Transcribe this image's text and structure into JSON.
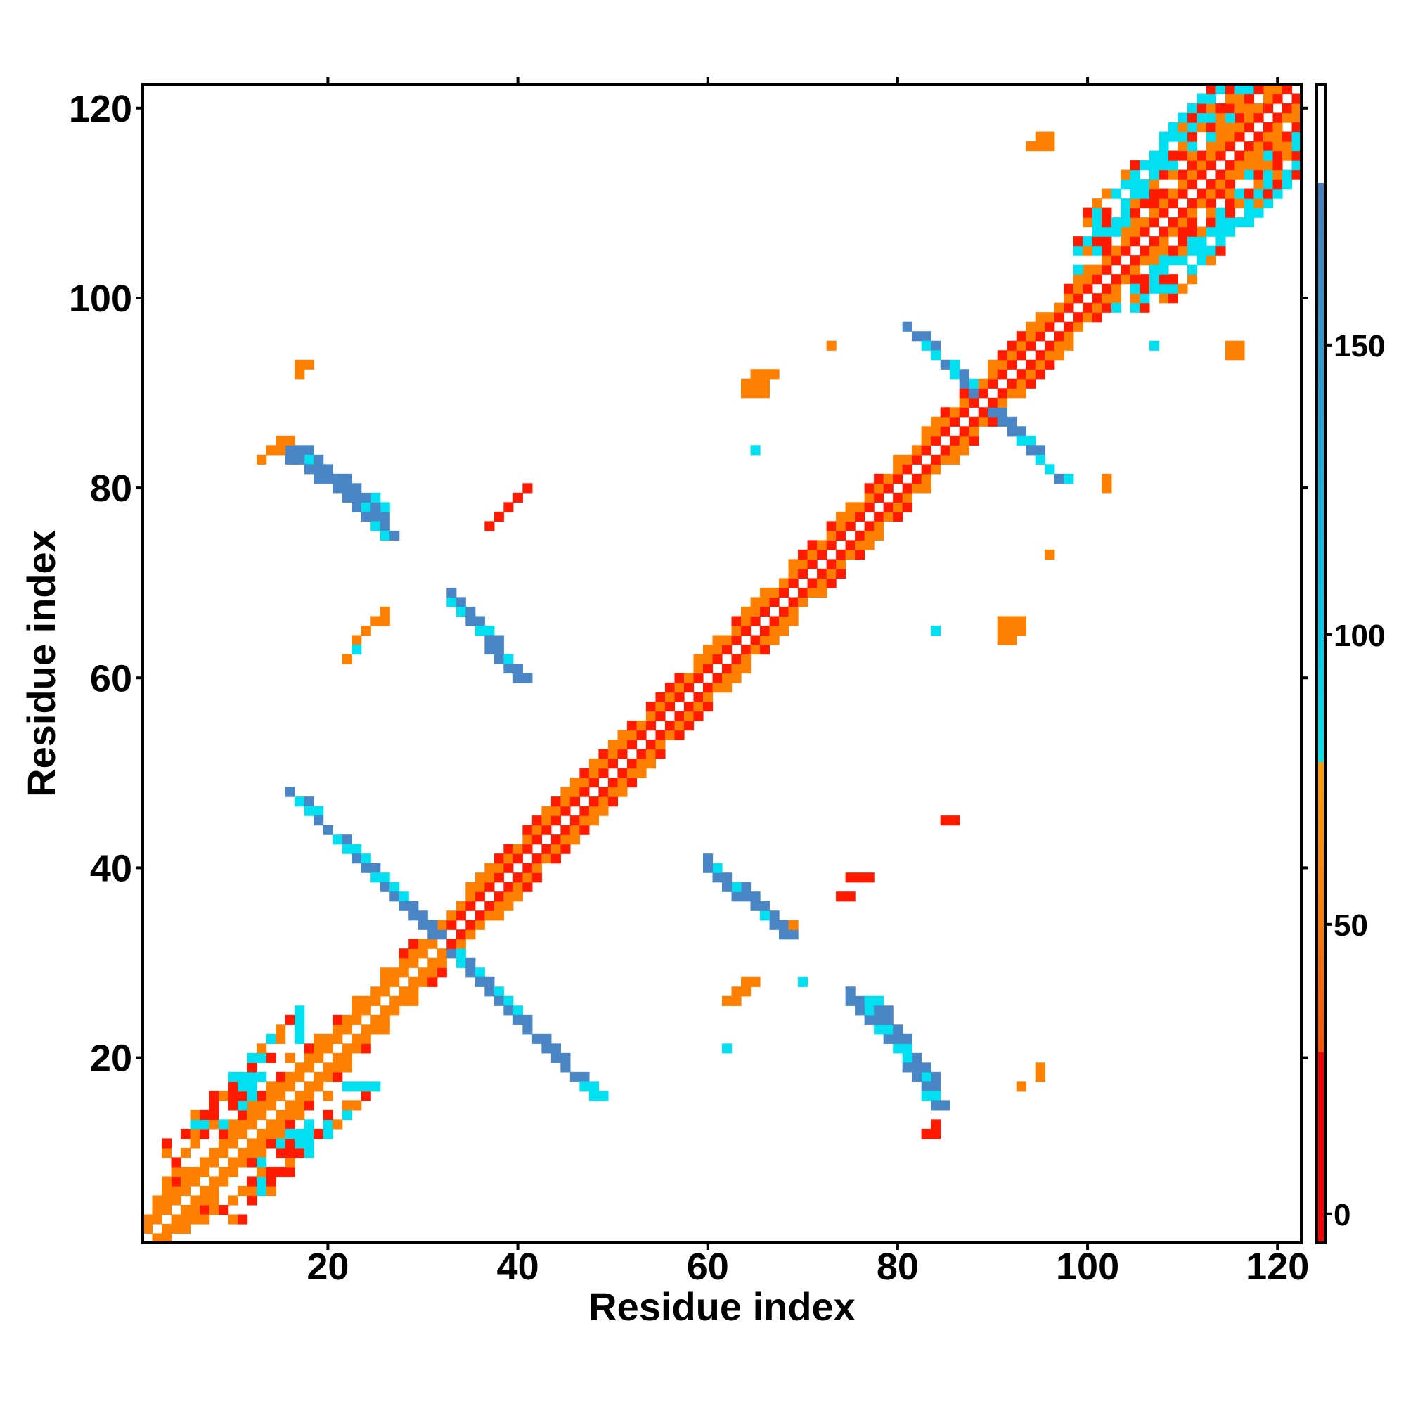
{
  "chart_data": {
    "type": "heatmap",
    "title": "",
    "xlabel": "Residue index",
    "ylabel": "Residue index",
    "xlim": [
      0.5,
      122.5
    ],
    "ylim": [
      0.5,
      122.5
    ],
    "xticks": [
      20,
      40,
      60,
      80,
      100,
      120
    ],
    "yticks": [
      20,
      40,
      60,
      80,
      100,
      120
    ],
    "grid": false,
    "colorbar": {
      "ticks": [
        0,
        50,
        100,
        150
      ],
      "range": [
        -5,
        195
      ],
      "segments": [
        {
          "from": -5,
          "to": 28,
          "color": "#ff0000"
        },
        {
          "from": 28,
          "to": 78,
          "color": "#ff8c00"
        },
        {
          "from": 78,
          "to": 178,
          "color": "#00e5ee"
        },
        {
          "from": 178,
          "to": 195,
          "color": "#ffffff"
        }
      ],
      "gradients": [
        {
          "from": 28,
          "to": 50,
          "colorStart": "#ff5000",
          "colorEnd": "#ff7a00"
        },
        {
          "from": 50,
          "to": 78,
          "colorStart": "#ff7a00",
          "colorEnd": "#ffa000"
        },
        {
          "from": 78,
          "to": 100,
          "colorStart": "#00e5ee",
          "colorEnd": "#00ccee"
        },
        {
          "from": 100,
          "to": 178,
          "colorStart": "#00ccee",
          "colorEnd": "#4a7ebb"
        }
      ]
    },
    "colors": {
      "red": "#ff1a00",
      "orange": "#ff8000",
      "cyan": "#00e0f0",
      "blue": "#4a86c5"
    },
    "regions": [
      {
        "kind": "diag",
        "from": 1,
        "to": 31,
        "inner": "orange",
        "outer": "orange"
      },
      {
        "kind": "diag",
        "from": 32,
        "to": 87,
        "inner": "red",
        "outer": "orange"
      },
      {
        "kind": "diag",
        "from": 88,
        "to": 122,
        "inner": "red",
        "outer": "orange"
      },
      {
        "kind": "helixband",
        "from": 3,
        "to": 17,
        "width": 5
      },
      {
        "kind": "helixband",
        "from": 99,
        "to": 118,
        "width": 6
      },
      {
        "kind": "antidiag",
        "cx": 31.5,
        "cy": 31.5,
        "halfLen": 16,
        "width": 2
      },
      {
        "kind": "antidiag",
        "cx": 88.5,
        "cy": 88.5,
        "halfLen": 8,
        "width": 2
      },
      {
        "kind": "parallel",
        "x0": 33,
        "y0": 68,
        "x1": 40,
        "y1": 60,
        "width": 2
      },
      {
        "kind": "parallel",
        "x0": 17,
        "y0": 84,
        "x1": 26,
        "y1": 75,
        "width": 2
      },
      {
        "kind": "parallel",
        "x0": 60,
        "y0": 40,
        "x1": 68,
        "y1": 33,
        "width": 2
      },
      {
        "kind": "parallel",
        "x0": 77,
        "y0": 26,
        "x1": 84,
        "y1": 15,
        "width": 2
      },
      {
        "kind": "blob",
        "cells": [
          [
            64,
            91
          ],
          [
            65,
            91
          ],
          [
            66,
            91
          ],
          [
            65,
            92
          ],
          [
            66,
            92
          ],
          [
            67,
            92
          ],
          [
            64,
            90
          ],
          [
            65,
            90
          ],
          [
            66,
            90
          ]
        ],
        "color": "orange"
      },
      {
        "kind": "blob",
        "cells": [
          [
            91,
            65
          ],
          [
            92,
            65
          ],
          [
            93,
            65
          ],
          [
            91,
            66
          ],
          [
            92,
            66
          ],
          [
            93,
            66
          ],
          [
            92,
            64
          ],
          [
            91,
            64
          ]
        ],
        "color": "orange"
      },
      {
        "kind": "blob",
        "cells": [
          [
            94,
            116
          ],
          [
            95,
            116
          ],
          [
            96,
            116
          ],
          [
            96,
            117
          ],
          [
            95,
            117
          ]
        ],
        "color": "orange"
      },
      {
        "kind": "blob",
        "cells": [
          [
            115,
            95
          ],
          [
            116,
            95
          ],
          [
            116,
            94
          ],
          [
            115,
            94
          ]
        ],
        "color": "orange"
      },
      {
        "kind": "blob",
        "cells": [
          [
            15,
            85
          ],
          [
            16,
            85
          ],
          [
            14,
            84
          ],
          [
            15,
            84
          ],
          [
            13,
            83
          ]
        ],
        "color": "orange"
      },
      {
        "kind": "blob",
        "cells": [
          [
            17,
            93
          ],
          [
            18,
            93
          ],
          [
            17,
            92
          ]
        ],
        "color": "orange"
      },
      {
        "kind": "blob",
        "cells": [
          [
            84,
            13
          ],
          [
            83,
            12
          ],
          [
            84,
            12
          ]
        ],
        "color": "red"
      },
      {
        "kind": "blob",
        "cells": [
          [
            64,
            28
          ],
          [
            65,
            28
          ],
          [
            63,
            27
          ],
          [
            64,
            27
          ],
          [
            62,
            26
          ],
          [
            63,
            26
          ]
        ],
        "color": "orange"
      },
      {
        "kind": "blob",
        "cells": [
          [
            26,
            67
          ],
          [
            25,
            66
          ],
          [
            26,
            66
          ],
          [
            24,
            65
          ],
          [
            23,
            64
          ]
        ],
        "color": "orange"
      },
      {
        "kind": "blob",
        "cells": [
          [
            41,
            80
          ],
          [
            40,
            79
          ],
          [
            39,
            78
          ],
          [
            38,
            77
          ],
          [
            37,
            76
          ]
        ],
        "color": "red"
      },
      {
        "kind": "blob",
        "cells": [
          [
            75,
            39
          ],
          [
            76,
            39
          ],
          [
            77,
            39
          ],
          [
            74,
            37
          ],
          [
            75,
            37
          ]
        ],
        "color": "red"
      },
      {
        "kind": "blob",
        "cells": [
          [
            85,
            45
          ],
          [
            86,
            45
          ]
        ],
        "color": "red"
      },
      {
        "kind": "blob",
        "cells": [
          [
            95,
            18
          ],
          [
            95,
            19
          ],
          [
            93,
            17
          ]
        ],
        "color": "orange"
      },
      {
        "kind": "blob",
        "cells": [
          [
            99,
            102
          ],
          [
            100,
            102
          ]
        ],
        "color": "orange"
      },
      {
        "kind": "blob",
        "cells": [
          [
            102,
            80
          ],
          [
            102,
            81
          ]
        ],
        "color": "orange"
      },
      {
        "kind": "blob",
        "cells": [
          [
            73,
            95
          ],
          [
            96,
            73
          ],
          [
            69,
            34
          ],
          [
            22,
            62
          ]
        ],
        "color": "orange"
      },
      {
        "kind": "blob",
        "cells": [
          [
            65,
            84
          ],
          [
            84,
            65
          ],
          [
            70,
            28
          ],
          [
            23,
            63
          ],
          [
            62,
            21
          ],
          [
            107,
            95
          ]
        ],
        "color": "cyan"
      }
    ]
  }
}
